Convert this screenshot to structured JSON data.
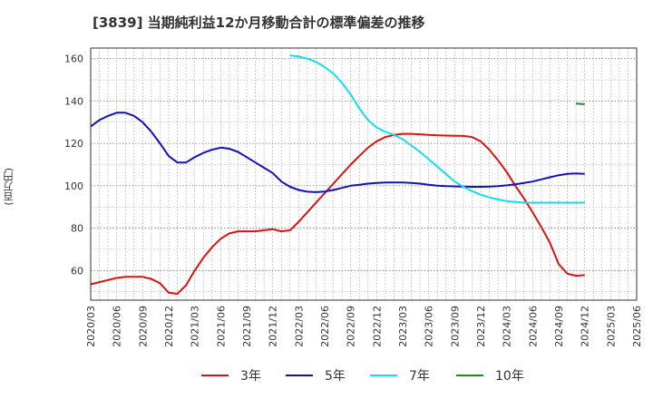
{
  "chart_data": {
    "type": "line",
    "title": "[3839]  当期純利益12か月移動合計の標準偏差の推移",
    "ylabel": "(百万円)",
    "xlabel": "",
    "ylim": [
      46,
      165
    ],
    "yticks": [
      60,
      80,
      100,
      120,
      140,
      160
    ],
    "xticks": [
      "2020/03",
      "2020/06",
      "2020/09",
      "2020/12",
      "2021/03",
      "2021/06",
      "2021/09",
      "2021/12",
      "2022/03",
      "2022/06",
      "2022/09",
      "2022/12",
      "2023/03",
      "2023/06",
      "2023/09",
      "2023/12",
      "2024/03",
      "2024/06",
      "2024/09",
      "2024/12",
      "2025/03",
      "2025/06"
    ],
    "series": [
      {
        "name": "3年",
        "color": "#dd1111",
        "points": [
          [
            0,
            53.5
          ],
          [
            1,
            54.5
          ],
          [
            2,
            55.5
          ],
          [
            3,
            56.5
          ],
          [
            4,
            57
          ],
          [
            5,
            57
          ],
          [
            6,
            57
          ],
          [
            7,
            56
          ],
          [
            8,
            54
          ],
          [
            9,
            49.5
          ],
          [
            10,
            49
          ],
          [
            11,
            53
          ],
          [
            12,
            60
          ],
          [
            13,
            66
          ],
          [
            14,
            71
          ],
          [
            15,
            75
          ],
          [
            16,
            77.5
          ],
          [
            17,
            78.5
          ],
          [
            18,
            78.5
          ],
          [
            19,
            78.5
          ],
          [
            20,
            79
          ],
          [
            21,
            79.5
          ],
          [
            22,
            78.5
          ],
          [
            23,
            79
          ],
          [
            24,
            83
          ],
          [
            25,
            87.5
          ],
          [
            26,
            92
          ],
          [
            27,
            96.5
          ],
          [
            28,
            101
          ],
          [
            29,
            105.5
          ],
          [
            30,
            110
          ],
          [
            31,
            114
          ],
          [
            32,
            118
          ],
          [
            33,
            121
          ],
          [
            34,
            123
          ],
          [
            35,
            124
          ],
          [
            36,
            124.5
          ],
          [
            37,
            124.5
          ],
          [
            38,
            124.3
          ],
          [
            39,
            124
          ],
          [
            40,
            123.8
          ],
          [
            41,
            123.7
          ],
          [
            42,
            123.6
          ],
          [
            43,
            123.5
          ],
          [
            44,
            123
          ],
          [
            45,
            121
          ],
          [
            46,
            117
          ],
          [
            47,
            112
          ],
          [
            48,
            106.5
          ],
          [
            49,
            100
          ],
          [
            50,
            94
          ],
          [
            51,
            87.5
          ],
          [
            52,
            80.5
          ],
          [
            53,
            73
          ],
          [
            54,
            63
          ],
          [
            55,
            58.5
          ],
          [
            56,
            57.5
          ],
          [
            57,
            57.8
          ]
        ]
      },
      {
        "name": "5年",
        "color": "#1111bb",
        "points": [
          [
            0,
            128
          ],
          [
            1,
            131
          ],
          [
            2,
            133
          ],
          [
            3,
            134.5
          ],
          [
            4,
            134.5
          ],
          [
            5,
            133
          ],
          [
            6,
            130
          ],
          [
            7,
            125.5
          ],
          [
            8,
            120
          ],
          [
            9,
            114
          ],
          [
            10,
            111
          ],
          [
            11,
            111
          ],
          [
            12,
            113.5
          ],
          [
            13,
            115.5
          ],
          [
            14,
            117
          ],
          [
            15,
            118
          ],
          [
            16,
            117.5
          ],
          [
            17,
            116
          ],
          [
            18,
            113.5
          ],
          [
            19,
            111
          ],
          [
            20,
            108.5
          ],
          [
            21,
            106
          ],
          [
            22,
            102
          ],
          [
            23,
            99.5
          ],
          [
            24,
            98
          ],
          [
            25,
            97.2
          ],
          [
            26,
            97
          ],
          [
            27,
            97.3
          ],
          [
            28,
            98
          ],
          [
            29,
            99
          ],
          [
            30,
            100
          ],
          [
            31,
            100.5
          ],
          [
            32,
            101
          ],
          [
            33,
            101.3
          ],
          [
            34,
            101.5
          ],
          [
            35,
            101.5
          ],
          [
            36,
            101.5
          ],
          [
            37,
            101.3
          ],
          [
            38,
            101
          ],
          [
            39,
            100.5
          ],
          [
            40,
            100
          ],
          [
            41,
            99.8
          ],
          [
            42,
            99.7
          ],
          [
            43,
            99.6
          ],
          [
            44,
            99.5
          ],
          [
            45,
            99.5
          ],
          [
            46,
            99.6
          ],
          [
            47,
            99.8
          ],
          [
            48,
            100.2
          ],
          [
            49,
            100.7
          ],
          [
            50,
            101.3
          ],
          [
            51,
            102
          ],
          [
            52,
            103
          ],
          [
            53,
            104
          ],
          [
            54,
            105
          ],
          [
            55,
            105.6
          ],
          [
            56,
            105.8
          ],
          [
            57,
            105.6
          ]
        ]
      },
      {
        "name": "7年",
        "color": "#11ddee",
        "points": [
          [
            23,
            161.5
          ],
          [
            24,
            161
          ],
          [
            25,
            160
          ],
          [
            26,
            158.5
          ],
          [
            27,
            156
          ],
          [
            28,
            153
          ],
          [
            29,
            148.5
          ],
          [
            30,
            143
          ],
          [
            31,
            136.5
          ],
          [
            32,
            131
          ],
          [
            33,
            127.5
          ],
          [
            34,
            125.5
          ],
          [
            35,
            124
          ],
          [
            36,
            122
          ],
          [
            37,
            119
          ],
          [
            38,
            116
          ],
          [
            39,
            112.5
          ],
          [
            40,
            109
          ],
          [
            41,
            105.5
          ],
          [
            42,
            102
          ],
          [
            43,
            99.5
          ],
          [
            44,
            97.5
          ],
          [
            45,
            95.8
          ],
          [
            46,
            94.5
          ],
          [
            47,
            93.5
          ],
          [
            48,
            92.8
          ],
          [
            49,
            92.3
          ],
          [
            50,
            92
          ],
          [
            51,
            92
          ],
          [
            52,
            92
          ],
          [
            53,
            92
          ],
          [
            54,
            92
          ],
          [
            55,
            92
          ],
          [
            56,
            92
          ],
          [
            57,
            92
          ]
        ]
      },
      {
        "name": "10年",
        "color": "#228822",
        "points": [
          [
            56,
            138.8
          ],
          [
            57,
            138.5
          ]
        ]
      }
    ]
  }
}
